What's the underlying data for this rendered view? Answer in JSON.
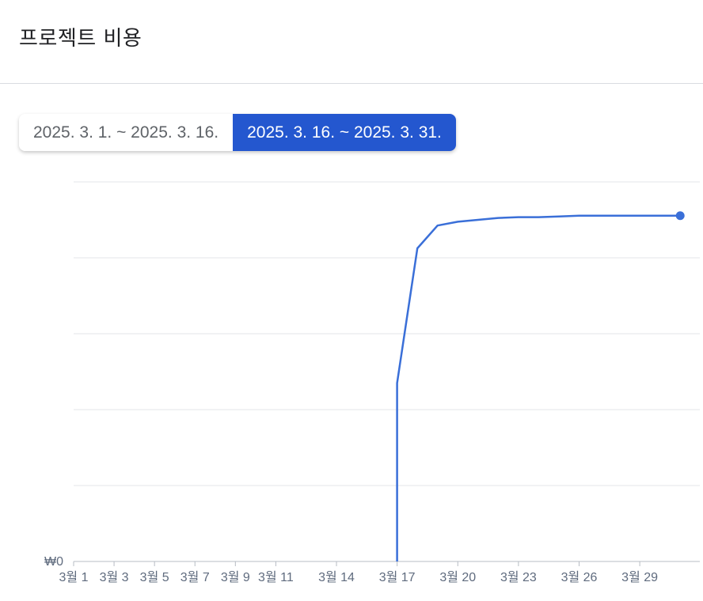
{
  "header": {
    "title": "프로젝트 비용"
  },
  "date_ranges": [
    {
      "label": "2025. 3. 1. ~ 2025. 3. 16.",
      "selected": false
    },
    {
      "label": "2025. 3. 16. ~ 2025. 3. 31.",
      "selected": true
    }
  ],
  "chart_data": {
    "type": "line",
    "title": "",
    "xlabel": "",
    "ylabel": "",
    "x_tick_labels": [
      "3월 1",
      "3월 3",
      "3월 5",
      "3월 7",
      "3월 9",
      "3월 11",
      "3월 14",
      "3월 17",
      "3월 20",
      "3월 23",
      "3월 26",
      "3월 29"
    ],
    "x_tick_days": [
      1,
      3,
      5,
      7,
      9,
      11,
      14,
      17,
      20,
      23,
      26,
      29
    ],
    "y_tick_labels": [
      "₩0"
    ],
    "grid": true,
    "ylim": [
      0,
      1
    ],
    "series": [
      {
        "color": "#3a6fd8",
        "x": [
          17,
          17,
          18,
          19,
          20,
          21,
          22,
          23,
          24,
          25,
          26,
          27,
          28,
          29,
          30,
          31
        ],
        "y": [
          0,
          0.47,
          0.825,
          0.885,
          0.895,
          0.9,
          0.905,
          0.907,
          0.907,
          0.909,
          0.911,
          0.911,
          0.911,
          0.911,
          0.911,
          0.911
        ]
      }
    ]
  }
}
